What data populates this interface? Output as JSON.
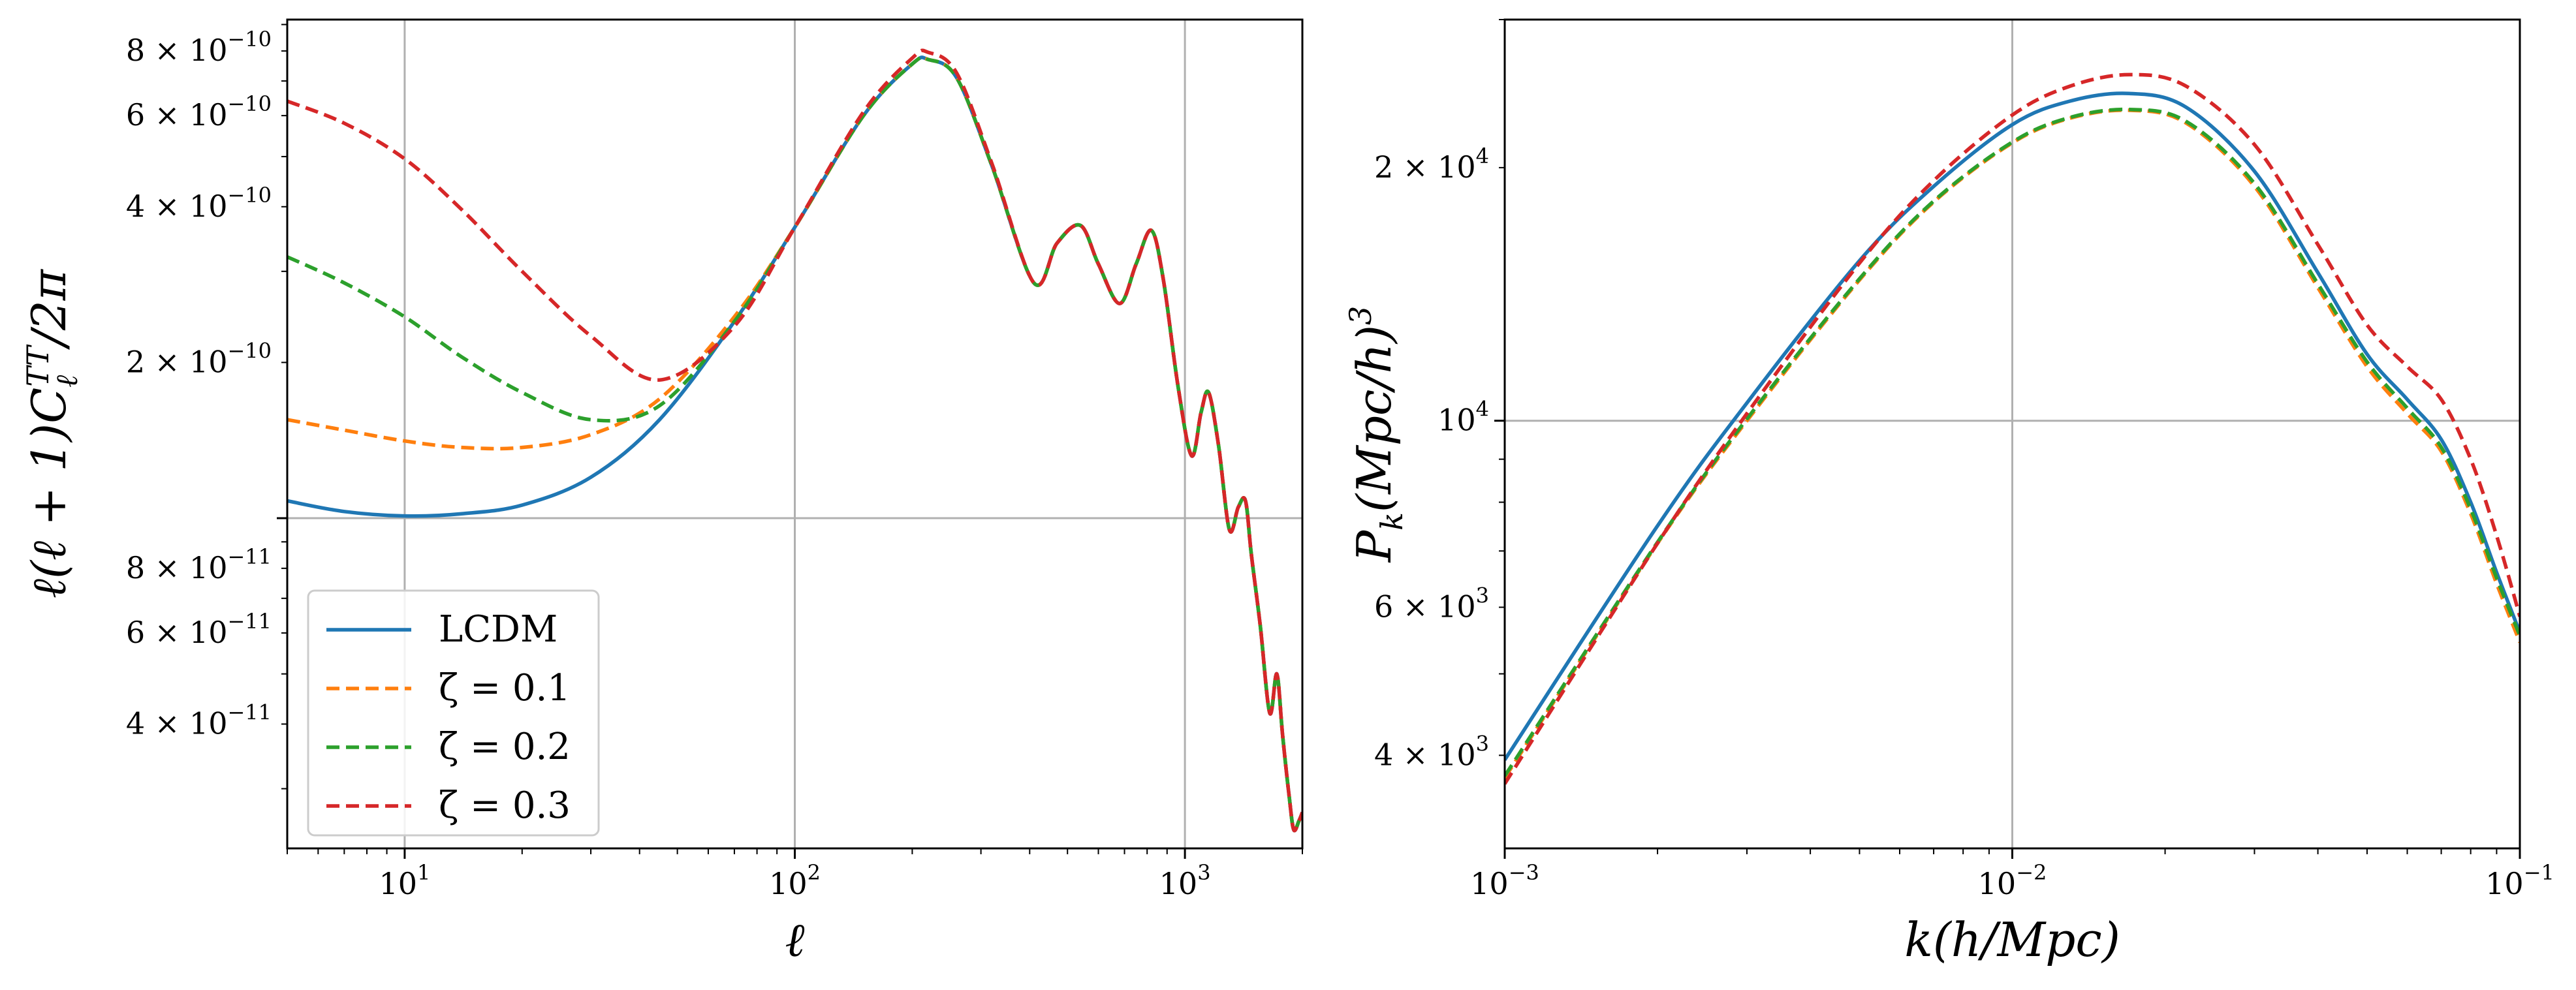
{
  "chart_data": [
    {
      "type": "line",
      "xscale": "log",
      "yscale": "log",
      "xlim": [
        5,
        2000
      ],
      "ylim": [
        2.3e-11,
        9.2e-10
      ],
      "xlabel": "ℓ",
      "ylabel": "ℓ(ℓ+1)C_ℓ^TT/2π",
      "grid": true,
      "legend_location": "lower-left",
      "x_ticks": [
        {
          "value": 10,
          "base": "10",
          "exp": "1"
        },
        {
          "value": 100,
          "base": "10",
          "exp": "2"
        },
        {
          "value": 1000,
          "base": "10",
          "exp": "3"
        }
      ],
      "y_ticks": [
        {
          "value": 4e-11,
          "mant": "4 × 10",
          "exp": "−11"
        },
        {
          "value": 6e-11,
          "mant": "6 × 10",
          "exp": "−11"
        },
        {
          "value": 8e-11,
          "mant": "8 × 10",
          "exp": "−11"
        },
        {
          "value": 2e-10,
          "mant": "2 × 10",
          "exp": "−10"
        },
        {
          "value": 4e-10,
          "mant": "4 × 10",
          "exp": "−10"
        },
        {
          "value": 6e-10,
          "mant": "6 × 10",
          "exp": "−10"
        },
        {
          "value": 8e-10,
          "mant": "8 × 10",
          "exp": "−10"
        }
      ],
      "y_grid": [
        1e-10
      ],
      "series": [
        {
          "name": "LCDM",
          "label": "LCDM",
          "color": "#1f77b4",
          "dash": "solid",
          "x": [
            5,
            7,
            10,
            14,
            20,
            30,
            45,
            70,
            100,
            150,
            200,
            220,
            260,
            320,
            410,
            470,
            540,
            600,
            680,
            750,
            820,
            880,
            960,
            1040,
            1100,
            1150,
            1220,
            1300,
            1370,
            1430,
            1480,
            1560,
            1650,
            1720,
            1780,
            1850,
            1900,
            1960,
            2000
          ],
          "y": [
            1.08e-10,
            1.03e-10,
            1.01e-10,
            1.02e-10,
            1.06e-10,
            1.2e-10,
            1.55e-10,
            2.4e-10,
            3.65e-10,
            6e-10,
            7.55e-10,
            7.7e-10,
            7.1e-10,
            4.8e-10,
            2.85e-10,
            3.4e-10,
            3.68e-10,
            3.1e-10,
            2.6e-10,
            3.1e-10,
            3.6e-10,
            2.9e-10,
            1.8e-10,
            1.32e-10,
            1.6e-10,
            1.75e-10,
            1.38e-10,
            9.5e-11,
            1.05e-10,
            1.08e-10,
            8.5e-11,
            6.2e-11,
            4.2e-11,
            5e-11,
            3.8e-11,
            2.9e-11,
            2.5e-11,
            2.6e-11,
            2.7e-11
          ]
        },
        {
          "name": "zeta-0.1",
          "label": "ζ = 0.1",
          "color": "#ff7f0e",
          "dash": "dashed",
          "x": [
            5,
            7,
            10,
            14,
            20,
            30,
            45,
            70,
            100,
            150,
            200,
            220,
            260,
            320,
            410,
            470,
            540,
            600,
            680,
            750,
            820,
            880,
            960,
            1040,
            1100,
            1150,
            1220,
            1300,
            1370,
            1430,
            1480,
            1560,
            1650,
            1720,
            1780,
            1850,
            1900,
            1960,
            2000
          ],
          "y": [
            1.55e-10,
            1.48e-10,
            1.41e-10,
            1.37e-10,
            1.37e-10,
            1.45e-10,
            1.7e-10,
            2.45e-10,
            3.65e-10,
            6e-10,
            7.55e-10,
            7.7e-10,
            7.1e-10,
            4.8e-10,
            2.85e-10,
            3.4e-10,
            3.68e-10,
            3.1e-10,
            2.6e-10,
            3.1e-10,
            3.6e-10,
            2.9e-10,
            1.8e-10,
            1.32e-10,
            1.6e-10,
            1.75e-10,
            1.38e-10,
            9.5e-11,
            1.05e-10,
            1.08e-10,
            8.5e-11,
            6.2e-11,
            4.2e-11,
            5e-11,
            3.8e-11,
            2.9e-11,
            2.5e-11,
            2.6e-11,
            2.7e-11
          ]
        },
        {
          "name": "zeta-0.2",
          "label": "ζ = 0.2",
          "color": "#2ca02c",
          "dash": "dashed",
          "x": [
            5,
            7,
            10,
            14,
            20,
            30,
            45,
            70,
            100,
            150,
            200,
            220,
            260,
            320,
            410,
            470,
            540,
            600,
            680,
            750,
            820,
            880,
            960,
            1040,
            1100,
            1150,
            1220,
            1300,
            1370,
            1430,
            1480,
            1560,
            1650,
            1720,
            1780,
            1850,
            1900,
            1960,
            2000
          ],
          "y": [
            3.2e-10,
            2.85e-10,
            2.45e-10,
            2.05e-10,
            1.75e-10,
            1.55e-10,
            1.65e-10,
            2.4e-10,
            3.65e-10,
            6e-10,
            7.55e-10,
            7.7e-10,
            7.1e-10,
            4.8e-10,
            2.85e-10,
            3.4e-10,
            3.68e-10,
            3.1e-10,
            2.6e-10,
            3.1e-10,
            3.6e-10,
            2.9e-10,
            1.8e-10,
            1.32e-10,
            1.6e-10,
            1.75e-10,
            1.38e-10,
            9.5e-11,
            1.05e-10,
            1.08e-10,
            8.5e-11,
            6.2e-11,
            4.2e-11,
            5e-11,
            3.8e-11,
            2.9e-11,
            2.5e-11,
            2.6e-11,
            2.7e-11
          ]
        },
        {
          "name": "zeta-0.3",
          "label": "ζ = 0.3",
          "color": "#d62728",
          "dash": "dashed",
          "x": [
            5,
            7,
            10,
            14,
            20,
            30,
            45,
            70,
            100,
            150,
            200,
            220,
            260,
            320,
            410,
            470,
            540,
            600,
            680,
            750,
            820,
            880,
            960,
            1040,
            1100,
            1150,
            1220,
            1300,
            1370,
            1430,
            1480,
            1560,
            1650,
            1720,
            1780,
            1850,
            1900,
            1960,
            2000
          ],
          "y": [
            6.4e-10,
            5.8e-10,
            4.95e-10,
            3.95e-10,
            3e-10,
            2.25e-10,
            1.85e-10,
            2.35e-10,
            3.65e-10,
            6.1e-10,
            7.75e-10,
            7.95e-10,
            7.25e-10,
            4.85e-10,
            2.85e-10,
            3.4e-10,
            3.68e-10,
            3.1e-10,
            2.6e-10,
            3.1e-10,
            3.6e-10,
            2.9e-10,
            1.8e-10,
            1.32e-10,
            1.6e-10,
            1.75e-10,
            1.38e-10,
            9.5e-11,
            1.05e-10,
            1.08e-10,
            8.5e-11,
            6.2e-11,
            4.2e-11,
            5e-11,
            3.8e-11,
            2.9e-11,
            2.5e-11,
            2.6e-11,
            2.7e-11
          ]
        }
      ]
    },
    {
      "type": "line",
      "xscale": "log",
      "yscale": "log",
      "xlim": [
        0.001,
        0.1
      ],
      "ylim": [
        3100,
        30000
      ],
      "xlabel": "k(h/Mpc)",
      "ylabel": "P_k(Mpc/h)^3",
      "grid": true,
      "x_ticks": [
        {
          "value": 0.001,
          "base": "10",
          "exp": "−3"
        },
        {
          "value": 0.01,
          "base": "10",
          "exp": "−2"
        },
        {
          "value": 0.1,
          "base": "10",
          "exp": "−1"
        }
      ],
      "y_ticks": [
        {
          "value": 4000,
          "mant": "4 × 10",
          "exp": "3"
        },
        {
          "value": 6000,
          "mant": "6 × 10",
          "exp": "3"
        },
        {
          "value": 10000,
          "mant": "10",
          "exp": "4"
        },
        {
          "value": 20000,
          "mant": "2 × 10",
          "exp": "4"
        }
      ],
      "y_grid": [
        10000
      ],
      "series": [
        {
          "name": "LCDM",
          "color": "#1f77b4",
          "dash": "solid",
          "x": [
            0.001,
            0.002,
            0.003,
            0.005,
            0.007,
            0.01,
            0.013,
            0.017,
            0.022,
            0.03,
            0.04,
            0.05,
            0.06,
            0.07,
            0.08,
            0.09,
            0.1
          ],
          "y": [
            3950,
            7500,
            10500,
            15500,
            19000,
            22500,
            24000,
            24500,
            23600,
            19800,
            15000,
            12000,
            10600,
            9500,
            8000,
            6600,
            5600
          ]
        },
        {
          "name": "zeta-0.1",
          "color": "#ff7f0e",
          "dash": "dashed",
          "x": [
            0.001,
            0.002,
            0.003,
            0.005,
            0.007,
            0.01,
            0.013,
            0.017,
            0.022,
            0.03,
            0.04,
            0.05,
            0.06,
            0.07,
            0.08,
            0.09,
            0.1
          ],
          "y": [
            3760,
            7150,
            10000,
            14700,
            18200,
            21400,
            22900,
            23400,
            22600,
            19000,
            14400,
            11600,
            10200,
            9200,
            7750,
            6400,
            5450
          ]
        },
        {
          "name": "zeta-0.2",
          "color": "#2ca02c",
          "dash": "dashed",
          "x": [
            0.001,
            0.002,
            0.003,
            0.005,
            0.007,
            0.01,
            0.013,
            0.017,
            0.022,
            0.03,
            0.04,
            0.05,
            0.06,
            0.07,
            0.08,
            0.09,
            0.1
          ],
          "y": [
            3780,
            7170,
            10050,
            14750,
            18250,
            21450,
            22950,
            23450,
            22700,
            19150,
            14550,
            11750,
            10350,
            9300,
            7850,
            6500,
            5550
          ]
        },
        {
          "name": "zeta-0.3",
          "color": "#d62728",
          "dash": "dashed",
          "x": [
            0.001,
            0.002,
            0.003,
            0.005,
            0.007,
            0.01,
            0.013,
            0.017,
            0.022,
            0.03,
            0.04,
            0.05,
            0.06,
            0.07,
            0.08,
            0.09,
            0.1
          ],
          "y": [
            3700,
            7150,
            10200,
            15400,
            19300,
            23100,
            25000,
            25800,
            25000,
            21300,
            16200,
            13000,
            11600,
            10600,
            9000,
            7300,
            5850
          ]
        }
      ]
    }
  ]
}
